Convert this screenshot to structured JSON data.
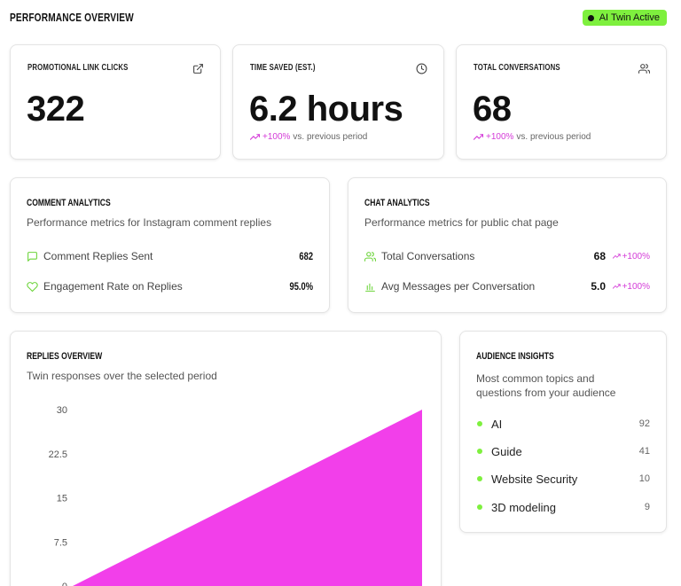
{
  "header": {
    "title": "PERFORMANCE OVERVIEW",
    "badge": "AI Twin Active"
  },
  "stats": [
    {
      "label": "PROMOTIONAL LINK CLICKS",
      "value": "322",
      "change": "",
      "change_suffix": "",
      "icon": "external-link-icon"
    },
    {
      "label": "TIME SAVED (EST.)",
      "value": "6.2 hours",
      "change": "+100%",
      "change_suffix": "vs. previous period",
      "icon": "clock-icon"
    },
    {
      "label": "TOTAL CONVERSATIONS",
      "value": "68",
      "change": "+100%",
      "change_suffix": "vs. previous period",
      "icon": "users-icon"
    }
  ],
  "comment_analytics": {
    "title": "COMMENT ANALYTICS",
    "subtitle": "Performance metrics for Instagram comment replies",
    "metrics": [
      {
        "label": "Comment Replies Sent",
        "value": "682",
        "icon": "message-square-icon"
      },
      {
        "label": "Engagement Rate on Replies",
        "value": "95.0%",
        "icon": "heart-icon"
      }
    ]
  },
  "chat_analytics": {
    "title": "CHAT ANALYTICS",
    "subtitle": "Performance metrics for public chat page",
    "metrics": [
      {
        "label": "Total Conversations",
        "value": "68",
        "change": "+100%",
        "icon": "users-icon"
      },
      {
        "label": "Avg Messages per Conversation",
        "value": "5.0",
        "change": "+100%",
        "icon": "bar-chart-icon"
      }
    ]
  },
  "replies_overview": {
    "title": "REPLIES OVERVIEW",
    "subtitle": "Twin responses over the selected period"
  },
  "audience_insights": {
    "title": "AUDIENCE INSIGHTS",
    "subtitle_line1": "Most common topics and",
    "subtitle_line2": "questions from your audience",
    "items": [
      {
        "label": "AI",
        "count": "92"
      },
      {
        "label": "Guide",
        "count": "41"
      },
      {
        "label": "Website Security",
        "count": "10"
      },
      {
        "label": "3D modeling",
        "count": "9"
      }
    ]
  },
  "colors": {
    "accent_green": "#7ef03e",
    "accent_pink": "#f23fea",
    "change_pink": "#d43bd8"
  },
  "chart_data": {
    "type": "area",
    "title": "",
    "xlabel": "",
    "ylabel": "",
    "ylim": [
      0,
      30
    ],
    "yticks": [
      "0",
      "7.5",
      "15",
      "22.5",
      "30"
    ],
    "series": [
      {
        "values": [
          0,
          30
        ]
      }
    ],
    "grid": false
  }
}
